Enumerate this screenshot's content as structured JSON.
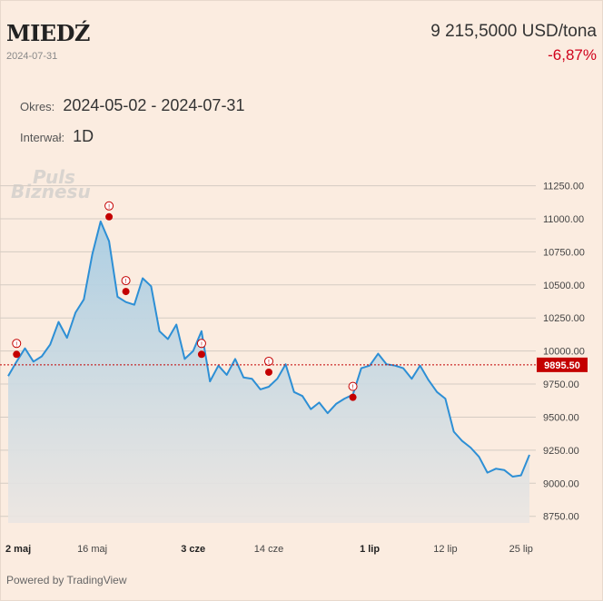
{
  "header": {
    "title": "MIEDŹ",
    "date": "2024-07-31",
    "price": "9 215,5000 USD/tona",
    "change": "-6,87%"
  },
  "controls": {
    "period_label": "Okres:",
    "period_value": "2024-05-02 - 2024-07-31",
    "interval_label": "Interwał:",
    "interval_value": "1D"
  },
  "watermark": {
    "line1": "Puls",
    "line2": "Biznesu"
  },
  "footer": {
    "text": "Powered by TradingView"
  },
  "colors": {
    "line": "#2d8fd5",
    "marker": "#c40000",
    "current_line": "#c40000",
    "price_tag": "#c40000"
  },
  "chart_data": {
    "type": "area",
    "ylim": [
      8700,
      11350
    ],
    "yticks": [
      8750,
      9000,
      9250,
      9500,
      9750,
      10000,
      10250,
      10500,
      10750,
      11000,
      11250
    ],
    "ytick_labels": [
      "8750.00",
      "9000.00",
      "9250.00",
      "9500.00",
      "9750.00",
      "10000.00",
      "10250.00",
      "10500.00",
      "10750.00",
      "11000.00",
      "11250.00"
    ],
    "xticks": [
      {
        "index": 0,
        "label": "2 maj",
        "bold": true
      },
      {
        "index": 10,
        "label": "16 maj",
        "bold": false
      },
      {
        "index": 22,
        "label": "3 cze",
        "bold": true
      },
      {
        "index": 31,
        "label": "14 cze",
        "bold": false
      },
      {
        "index": 43,
        "label": "1 lip",
        "bold": true
      },
      {
        "index": 52,
        "label": "12 lip",
        "bold": false
      },
      {
        "index": 61,
        "label": "25 lip",
        "bold": false
      }
    ],
    "values": [
      9810,
      9920,
      10020,
      9920,
      9960,
      10050,
      10220,
      10100,
      10290,
      10390,
      10730,
      10980,
      10830,
      10410,
      10370,
      10350,
      10550,
      10490,
      10150,
      10090,
      10200,
      9940,
      10000,
      10150,
      9770,
      9890,
      9820,
      9940,
      9800,
      9790,
      9710,
      9730,
      9790,
      9900,
      9690,
      9660,
      9560,
      9610,
      9530,
      9600,
      9640,
      9670,
      9870,
      9890,
      9980,
      9900,
      9890,
      9870,
      9790,
      9890,
      9780,
      9690,
      9640,
      9390,
      9320,
      9270,
      9200,
      9080,
      9110,
      9100,
      9050,
      9060,
      9215
    ],
    "markers": [
      {
        "index": 1,
        "value": 9975,
        "label": "!"
      },
      {
        "index": 12,
        "value": 11015,
        "label": "!"
      },
      {
        "index": 14,
        "value": 10450,
        "label": "!"
      },
      {
        "index": 23,
        "value": 9975,
        "label": "!"
      },
      {
        "index": 31,
        "value": 9840,
        "label": "!"
      },
      {
        "index": 41,
        "value": 9650,
        "label": "!"
      }
    ],
    "current_value": 9895.5,
    "current_label": "9895.50"
  }
}
